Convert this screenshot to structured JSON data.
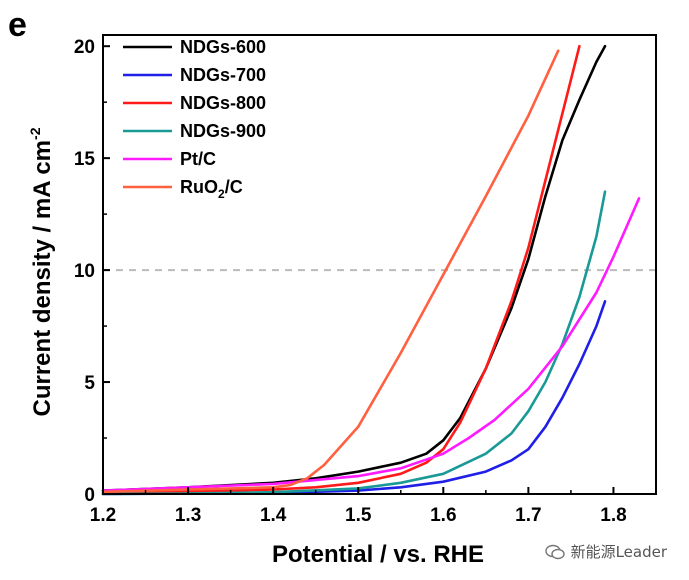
{
  "panel_label": "e",
  "watermark": {
    "text": "新能源Leader"
  },
  "chart_data": {
    "type": "line",
    "xlabel": "Potential / vs. RHE",
    "ylabel": "Current density / mA cm",
    "ylabel_sup": "-2",
    "xlim": [
      1.2,
      1.85
    ],
    "ylim": [
      0,
      20.5
    ],
    "xticks": [
      "1.2",
      "1.3",
      "1.4",
      "1.5",
      "1.6",
      "1.7",
      "1.8"
    ],
    "yticks": [
      "0",
      "5",
      "10",
      "15",
      "20"
    ],
    "reference_line": {
      "y": 10,
      "style": "dashed",
      "color": "#bbbbbb"
    },
    "legend": {
      "position": "top-left"
    },
    "series": [
      {
        "name": "NDGs-600",
        "color": "#000000",
        "x": [
          1.2,
          1.3,
          1.4,
          1.45,
          1.5,
          1.55,
          1.58,
          1.6,
          1.62,
          1.65,
          1.68,
          1.7,
          1.72,
          1.74,
          1.76,
          1.78,
          1.79
        ],
        "y": [
          0.15,
          0.3,
          0.5,
          0.7,
          1.0,
          1.4,
          1.8,
          2.4,
          3.4,
          5.6,
          8.3,
          10.5,
          13.3,
          15.8,
          17.6,
          19.3,
          20.0
        ]
      },
      {
        "name": "NDGs-700",
        "color": "#1f1fe8",
        "x": [
          1.2,
          1.3,
          1.4,
          1.5,
          1.55,
          1.6,
          1.65,
          1.68,
          1.7,
          1.72,
          1.74,
          1.76,
          1.78,
          1.79
        ],
        "y": [
          0.0,
          0.02,
          0.05,
          0.15,
          0.3,
          0.55,
          1.0,
          1.5,
          2.0,
          3.0,
          4.3,
          5.8,
          7.5,
          8.6
        ]
      },
      {
        "name": "NDGs-800",
        "color": "#ff1a1a",
        "x": [
          1.2,
          1.3,
          1.4,
          1.45,
          1.5,
          1.55,
          1.58,
          1.6,
          1.62,
          1.65,
          1.68,
          1.7,
          1.72,
          1.74,
          1.76
        ],
        "y": [
          0.05,
          0.1,
          0.2,
          0.3,
          0.5,
          0.9,
          1.4,
          2.0,
          3.2,
          5.6,
          8.6,
          11.0,
          14.0,
          17.0,
          20.0
        ]
      },
      {
        "name": "NDGs-900",
        "color": "#1a9a96",
        "x": [
          1.2,
          1.3,
          1.4,
          1.5,
          1.55,
          1.6,
          1.65,
          1.68,
          1.7,
          1.72,
          1.74,
          1.76,
          1.78,
          1.79
        ],
        "y": [
          0.0,
          0.02,
          0.08,
          0.25,
          0.5,
          0.9,
          1.8,
          2.7,
          3.7,
          5.0,
          6.7,
          8.8,
          11.5,
          13.5
        ]
      },
      {
        "name": "Pt/C",
        "color": "#ff1aff",
        "x": [
          1.2,
          1.3,
          1.4,
          1.5,
          1.55,
          1.6,
          1.63,
          1.66,
          1.7,
          1.74,
          1.78,
          1.8,
          1.83
        ],
        "y": [
          0.15,
          0.3,
          0.45,
          0.8,
          1.15,
          1.8,
          2.5,
          3.3,
          4.7,
          6.6,
          9.0,
          10.6,
          13.2
        ]
      },
      {
        "name": "RuO₂/C",
        "name_base": "RuO",
        "name_sub": "2",
        "name_suffix": "/C",
        "color": "#ff6040",
        "x": [
          1.2,
          1.3,
          1.4,
          1.42,
          1.44,
          1.46,
          1.5,
          1.55,
          1.6,
          1.65,
          1.7,
          1.735
        ],
        "y": [
          0.1,
          0.2,
          0.3,
          0.4,
          0.7,
          1.3,
          3.0,
          6.3,
          9.8,
          13.3,
          16.9,
          19.8
        ]
      }
    ]
  }
}
